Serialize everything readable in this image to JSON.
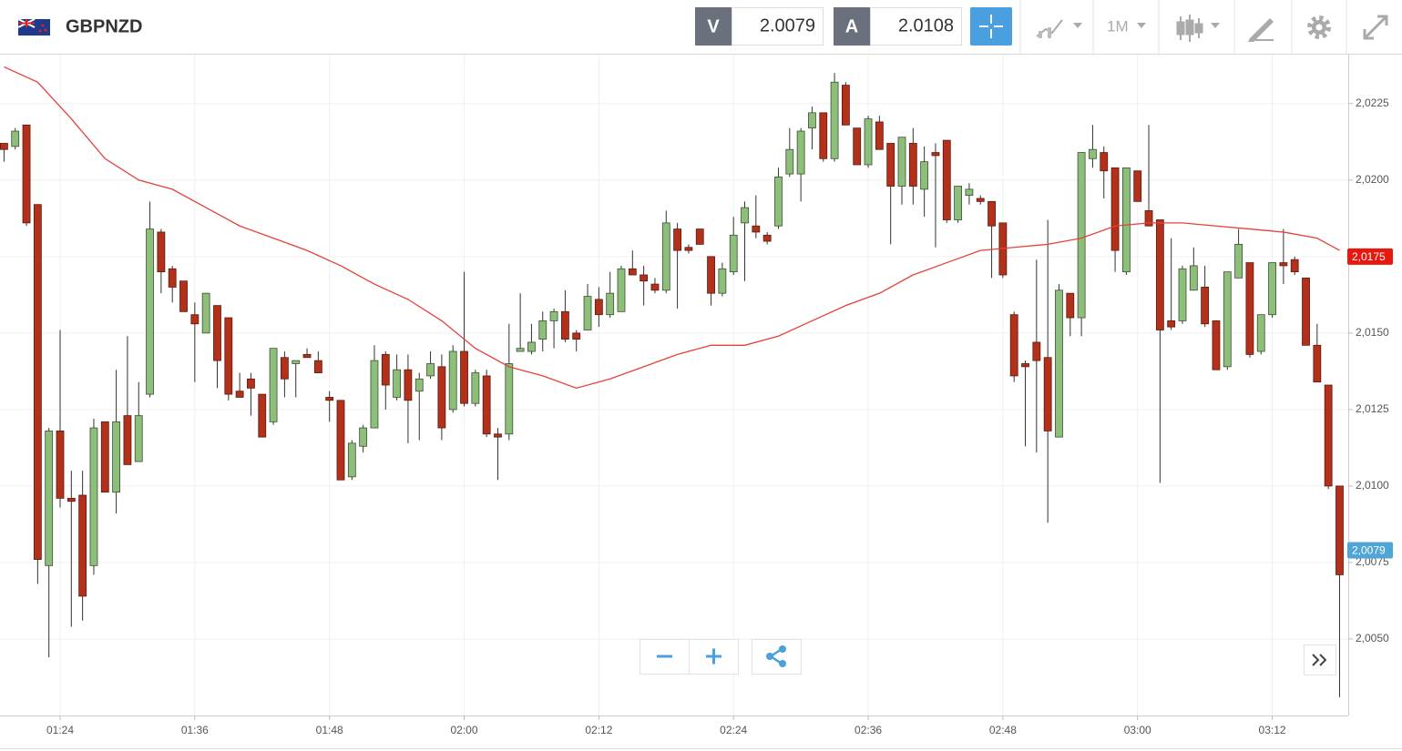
{
  "header": {
    "symbol": "GBPNZD",
    "bid_label": "V",
    "bid": "2.0079",
    "ask_label": "A",
    "ask": "2.0108",
    "timeframe": "1M"
  },
  "chart_data": {
    "type": "candlestick",
    "x": [
      "01:19",
      "01:20",
      "01:21",
      "01:22",
      "01:23",
      "01:24",
      "01:25",
      "01:26",
      "01:27",
      "01:28",
      "01:29",
      "01:30",
      "01:31",
      "01:32",
      "01:33",
      "01:34",
      "01:35",
      "01:36",
      "01:37",
      "01:38",
      "01:39",
      "01:40",
      "01:41",
      "01:42",
      "01:43",
      "01:44",
      "01:45",
      "01:46",
      "01:47",
      "01:48",
      "01:49",
      "01:50",
      "01:51",
      "01:52",
      "01:53",
      "01:54",
      "01:55",
      "01:56",
      "01:57",
      "01:58",
      "01:59",
      "02:00",
      "02:01",
      "02:02",
      "02:03",
      "02:04",
      "02:05",
      "02:06",
      "02:07",
      "02:08",
      "02:09",
      "02:10",
      "02:11",
      "02:12",
      "02:13",
      "02:14",
      "02:15",
      "02:16",
      "02:17",
      "02:18",
      "02:19",
      "02:20",
      "02:21",
      "02:22",
      "02:23",
      "02:24",
      "02:25",
      "02:26",
      "02:27",
      "02:28",
      "02:29",
      "02:30",
      "02:31",
      "02:32",
      "02:33",
      "02:34",
      "02:35",
      "02:36",
      "02:37",
      "02:38",
      "02:39",
      "02:40",
      "02:41",
      "02:42",
      "02:43",
      "02:44",
      "02:45",
      "02:46",
      "02:47",
      "02:48",
      "02:49",
      "02:50",
      "02:51",
      "02:52",
      "02:53",
      "02:54",
      "02:55",
      "02:56",
      "02:57",
      "02:58",
      "02:59",
      "03:00",
      "03:01",
      "03:02",
      "03:03",
      "03:04",
      "03:05",
      "03:06",
      "03:07",
      "03:08",
      "03:09",
      "03:10",
      "03:11",
      "03:12",
      "03:13",
      "03:14",
      "03:15",
      "03:16",
      "03:17",
      "03:18"
    ],
    "open": [
      2.0212,
      2.0211,
      2.0218,
      2.0192,
      2.0074,
      2.0118,
      2.0096,
      2.0097,
      2.0074,
      2.0121,
      2.0098,
      2.0123,
      2.0108,
      2.013,
      2.0183,
      2.0171,
      2.0167,
      2.0156,
      2.015,
      2.0159,
      2.0155,
      2.0131,
      2.0135,
      2.013,
      2.0121,
      2.0142,
      2.014,
      2.0143,
      2.0141,
      2.0129,
      2.0128,
      2.0103,
      2.0113,
      2.0119,
      2.0143,
      2.0129,
      2.0138,
      2.0131,
      2.0136,
      2.0139,
      2.0125,
      2.0144,
      2.0127,
      2.0136,
      2.0117,
      2.0117,
      2.0144,
      2.0144,
      2.0148,
      2.0154,
      2.0157,
      2.015,
      2.0151,
      2.0161,
      2.0156,
      2.0157,
      2.0171,
      2.0169,
      2.0166,
      2.0164,
      2.0184,
      2.0178,
      2.0184,
      2.0175,
      2.0163,
      2.017,
      2.0186,
      2.0185,
      2.0182,
      2.0185,
      2.0202,
      2.0202,
      2.0217,
      2.0222,
      2.0207,
      2.0231,
      2.0217,
      2.0205,
      2.0219,
      2.0212,
      2.0198,
      2.0212,
      2.0197,
      2.0209,
      2.0213,
      2.0187,
      2.0195,
      2.0194,
      2.0193,
      2.0186,
      2.0156,
      2.014,
      2.0147,
      2.0142,
      2.0116,
      2.0163,
      2.0155,
      2.0207,
      2.0209,
      2.0204,
      2.017,
      2.0203,
      2.019,
      2.0187,
      2.0154,
      2.0154,
      2.0164,
      2.0165,
      2.0154,
      2.0139,
      2.0168,
      2.0173,
      2.0144,
      2.0156,
      2.0173,
      2.0174,
      2.0168,
      2.0146,
      2.0133,
      2.01
    ],
    "high": [
      2.0212,
      2.0217,
      2.0218,
      2.0192,
      2.0119,
      2.0151,
      2.0105,
      2.0105,
      2.0122,
      2.0121,
      2.0138,
      2.0149,
      2.0134,
      2.0193,
      2.0184,
      2.0172,
      2.0167,
      2.016,
      2.0163,
      2.0159,
      2.0155,
      2.0137,
      2.0137,
      2.013,
      2.0145,
      2.0144,
      2.0141,
      2.0145,
      2.0144,
      2.0131,
      2.0128,
      2.0115,
      2.012,
      2.0146,
      2.0144,
      2.0143,
      2.0143,
      2.0137,
      2.0144,
      2.0143,
      2.0146,
      2.017,
      2.0138,
      2.0138,
      2.0119,
      2.0153,
      2.0163,
      2.0153,
      2.0157,
      2.0158,
      2.0164,
      2.0151,
      2.0166,
      2.0165,
      2.017,
      2.0172,
      2.0177,
      2.0172,
      2.0168,
      2.019,
      2.0186,
      2.0179,
      2.0184,
      2.0175,
      2.0173,
      2.0188,
      2.0193,
      2.0195,
      2.0183,
      2.0204,
      2.0217,
      2.0217,
      2.0224,
      2.0222,
      2.0235,
      2.0232,
      2.0217,
      2.0221,
      2.0221,
      2.0212,
      2.0214,
      2.0217,
      2.0211,
      2.0212,
      2.0213,
      2.0198,
      2.0199,
      2.0195,
      2.0193,
      2.0186,
      2.0157,
      2.0141,
      2.0174,
      2.0187,
      2.0166,
      2.0163,
      2.0209,
      2.0218,
      2.0211,
      2.0204,
      2.0204,
      2.0203,
      2.0218,
      2.0187,
      2.0181,
      2.0172,
      2.0178,
      2.0172,
      2.0154,
      2.017,
      2.0184,
      2.0173,
      2.0156,
      2.0173,
      2.0184,
      2.0175,
      2.0168,
      2.0153,
      2.0133,
      2.01
    ],
    "low": [
      2.0206,
      2.021,
      2.0185,
      2.0068,
      2.0044,
      2.0093,
      2.0054,
      2.0056,
      2.0071,
      2.0098,
      2.0091,
      2.0107,
      2.0108,
      2.0129,
      2.0163,
      2.016,
      2.0157,
      2.0134,
      2.015,
      2.0132,
      2.0128,
      2.0129,
      2.0123,
      2.0116,
      2.012,
      2.0129,
      2.0129,
      2.0142,
      2.0137,
      2.0121,
      2.0102,
      2.0102,
      2.0111,
      2.0119,
      2.0125,
      2.0128,
      2.0114,
      2.0115,
      2.0135,
      2.0115,
      2.0124,
      2.0126,
      2.0126,
      2.0116,
      2.0102,
      2.0115,
      2.0144,
      2.0143,
      2.0144,
      2.0145,
      2.0147,
      2.0144,
      2.0151,
      2.0152,
      2.0155,
      2.0157,
      2.0169,
      2.0159,
      2.0163,
      2.0163,
      2.0158,
      2.0176,
      2.0179,
      2.0159,
      2.0162,
      2.0169,
      2.0167,
      2.0181,
      2.0179,
      2.0184,
      2.0201,
      2.0193,
      2.021,
      2.0206,
      2.0206,
      2.0218,
      2.0205,
      2.0204,
      2.021,
      2.0179,
      2.0192,
      2.0192,
      2.0188,
      2.0178,
      2.0186,
      2.0186,
      2.0192,
      2.0192,
      2.0168,
      2.0168,
      2.0134,
      2.0113,
      2.0111,
      2.0088,
      2.0116,
      2.0149,
      2.0149,
      2.0204,
      2.0194,
      2.017,
      2.0169,
      2.0193,
      2.0185,
      2.0101,
      2.0151,
      2.0153,
      2.0164,
      2.0152,
      2.0138,
      2.0138,
      2.0168,
      2.0142,
      2.0143,
      2.0155,
      2.0166,
      2.0169,
      2.0146,
      2.0134,
      2.0099,
      2.0031
    ],
    "close": [
      2.021,
      2.0216,
      2.0186,
      2.0076,
      2.0118,
      2.0096,
      2.0095,
      2.0064,
      2.0119,
      2.0098,
      2.0121,
      2.0107,
      2.0123,
      2.0184,
      2.017,
      2.0165,
      2.0157,
      2.0153,
      2.0163,
      2.0141,
      2.013,
      2.0129,
      2.0132,
      2.0116,
      2.0145,
      2.0135,
      2.0141,
      2.0142,
      2.0137,
      2.0128,
      2.0102,
      2.0114,
      2.0119,
      2.0141,
      2.0133,
      2.0138,
      2.0128,
      2.0135,
      2.014,
      2.0119,
      2.0144,
      2.0127,
      2.0137,
      2.0117,
      2.0116,
      2.014,
      2.0145,
      2.0147,
      2.0154,
      2.0157,
      2.0148,
      2.0148,
      2.0162,
      2.0156,
      2.0163,
      2.0171,
      2.0169,
      2.0167,
      2.0164,
      2.0186,
      2.0177,
      2.0177,
      2.0179,
      2.0163,
      2.0171,
      2.0182,
      2.0191,
      2.0183,
      2.018,
      2.0201,
      2.021,
      2.0216,
      2.0222,
      2.0207,
      2.0232,
      2.0218,
      2.0205,
      2.022,
      2.021,
      2.0198,
      2.0214,
      2.0198,
      2.0206,
      2.0208,
      2.0187,
      2.0198,
      2.0197,
      2.0193,
      2.0185,
      2.0169,
      2.0136,
      2.0139,
      2.0141,
      2.0118,
      2.0164,
      2.0155,
      2.0209,
      2.021,
      2.0203,
      2.0177,
      2.0204,
      2.0193,
      2.0185,
      2.0151,
      2.0152,
      2.0171,
      2.0172,
      2.0153,
      2.0138,
      2.017,
      2.0179,
      2.0143,
      2.0156,
      2.0173,
      2.0172,
      2.017,
      2.0146,
      2.0134,
      2.01,
      2.0071
    ],
    "up_color": "#8dbf7a",
    "down_color": "#b3301b",
    "moving_average": {
      "color": "#e5413a",
      "x": [
        "01:19",
        "01:22",
        "01:25",
        "01:28",
        "01:31",
        "01:34",
        "01:37",
        "01:40",
        "01:43",
        "01:46",
        "01:49",
        "01:52",
        "01:55",
        "01:58",
        "02:01",
        "02:04",
        "02:07",
        "02:10",
        "02:13",
        "02:16",
        "02:19",
        "02:22",
        "02:25",
        "02:28",
        "02:31",
        "02:34",
        "02:37",
        "02:40",
        "02:43",
        "02:46",
        "02:49",
        "02:52",
        "02:55",
        "02:58",
        "03:01",
        "03:04",
        "03:07",
        "03:10",
        "03:13",
        "03:16",
        "03:18"
      ],
      "values": [
        2.0237,
        2.0232,
        2.022,
        2.0207,
        2.02,
        2.0197,
        2.0191,
        2.0185,
        2.0181,
        2.0177,
        2.0172,
        2.0166,
        2.0161,
        2.0154,
        2.0145,
        2.0139,
        2.0136,
        2.0132,
        2.0135,
        2.0139,
        2.0143,
        2.0146,
        2.0146,
        2.0149,
        2.0154,
        2.0159,
        2.0163,
        2.0169,
        2.0173,
        2.0177,
        2.0178,
        2.0179,
        2.0181,
        2.0185,
        2.0186,
        2.0186,
        2.0185,
        2.0184,
        2.0183,
        2.0181,
        2.0177
      ]
    },
    "ma_marker": {
      "value": 2.0175,
      "label": "2,0175",
      "color": "#e8180f"
    },
    "last_marker": {
      "value": 2.0079,
      "label": "2,0079",
      "color": "#4fa6d6"
    },
    "ylim": [
      2.0025,
      2.0241
    ],
    "yticks": [
      {
        "value": 2.005,
        "label": "2,0050"
      },
      {
        "value": 2.0075,
        "label": "2,0075"
      },
      {
        "value": 2.01,
        "label": "2,0100"
      },
      {
        "value": 2.0125,
        "label": "2,0125"
      },
      {
        "value": 2.015,
        "label": "2,0150"
      },
      {
        "value": 2.0175,
        "label": "2,0175"
      },
      {
        "value": 2.02,
        "label": "2,0200"
      },
      {
        "value": 2.0225,
        "label": "2,0225"
      }
    ],
    "xticks": [
      "01:24",
      "01:36",
      "01:48",
      "02:00",
      "02:12",
      "02:24",
      "02:36",
      "02:48",
      "03:00",
      "03:12"
    ],
    "grid": true
  }
}
